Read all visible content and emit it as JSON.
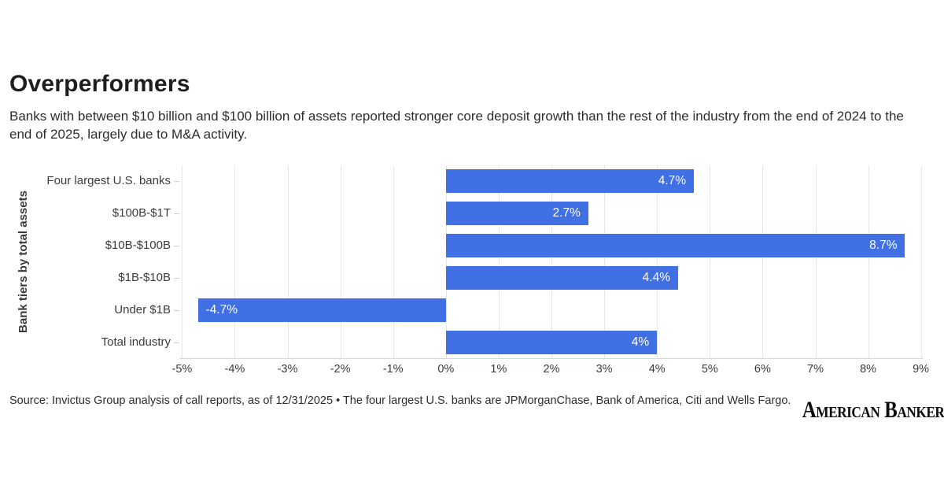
{
  "header": {
    "title": "Overperformers",
    "subtitle": "Banks with between $10 billion and $100 billion of assets reported stronger core deposit growth than the rest of the industry from the end of 2024 to the end of 2025, largely due to M&A activity."
  },
  "chart_data": {
    "type": "bar",
    "orientation": "horizontal",
    "title": "Overperformers",
    "xlabel": "",
    "ylabel": "Bank tiers by total assets",
    "categories": [
      "Four largest U.S. banks",
      "$100B-$1T",
      "$10B-$100B",
      "$1B-$10B",
      "Under $1B",
      "Total industry"
    ],
    "values": [
      4.7,
      2.7,
      8.7,
      4.4,
      -4.7,
      4
    ],
    "value_labels": [
      "4.7%",
      "2.7%",
      "8.7%",
      "4.4%",
      "-4.7%",
      "4%"
    ],
    "xlim": [
      -5.05,
      9.05
    ],
    "x_tick_values": [
      -5,
      -4,
      -3,
      -2,
      -1,
      0,
      1,
      2,
      3,
      4,
      5,
      6,
      7,
      8,
      9
    ],
    "x_tick_labels": [
      "-5%",
      "-4%",
      "-3%",
      "-2%",
      "-1%",
      "0%",
      "1%",
      "2%",
      "3%",
      "4%",
      "5%",
      "6%",
      "7%",
      "8%",
      "9%"
    ],
    "bar_color": "#4170e4",
    "grid": true,
    "legend": "none"
  },
  "footer": {
    "source": "Source: Invictus Group analysis of call reports, as of 12/31/2025 • The four largest U.S. banks are JPMorganChase, Bank of America, Citi and Wells Fargo.",
    "logo": "American Banker."
  }
}
